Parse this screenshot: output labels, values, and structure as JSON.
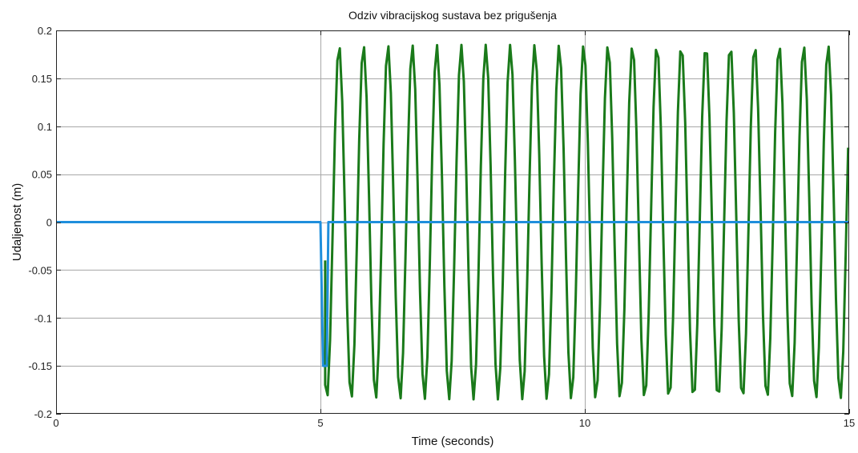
{
  "chart_data": {
    "type": "line",
    "title": "Odziv vibracijskog sustava bez prigušenja",
    "xlabel": "Time (seconds)",
    "ylabel": "Udaljenost (m)",
    "xlim": [
      0,
      15
    ],
    "ylim": [
      -0.2,
      0.2
    ],
    "x_ticks": [
      0,
      5,
      10,
      15
    ],
    "x_tick_labels": [
      "0",
      "5",
      "10",
      "15"
    ],
    "y_ticks": [
      -0.2,
      -0.15,
      -0.1,
      -0.05,
      0,
      0.05,
      0.1,
      0.15,
      0.2
    ],
    "y_tick_labels": [
      "-0.2",
      "-0.15",
      "-0.1",
      "-0.05",
      "0",
      "0.05",
      "0.1",
      "0.15",
      "0.2"
    ],
    "grid": true,
    "series": [
      {
        "color": "#1f8fdc",
        "points": [
          [
            0,
            0
          ],
          [
            5.0,
            0
          ],
          [
            5.05,
            -0.15
          ],
          [
            5.12,
            -0.15
          ],
          [
            5.15,
            0
          ],
          [
            15,
            0
          ]
        ]
      },
      {
        "color": "#1a7a1a",
        "start": 5.0,
        "end": 15.0,
        "amplitude": 0.185,
        "period": 0.4625,
        "phase_offset": 0.12
      }
    ]
  }
}
